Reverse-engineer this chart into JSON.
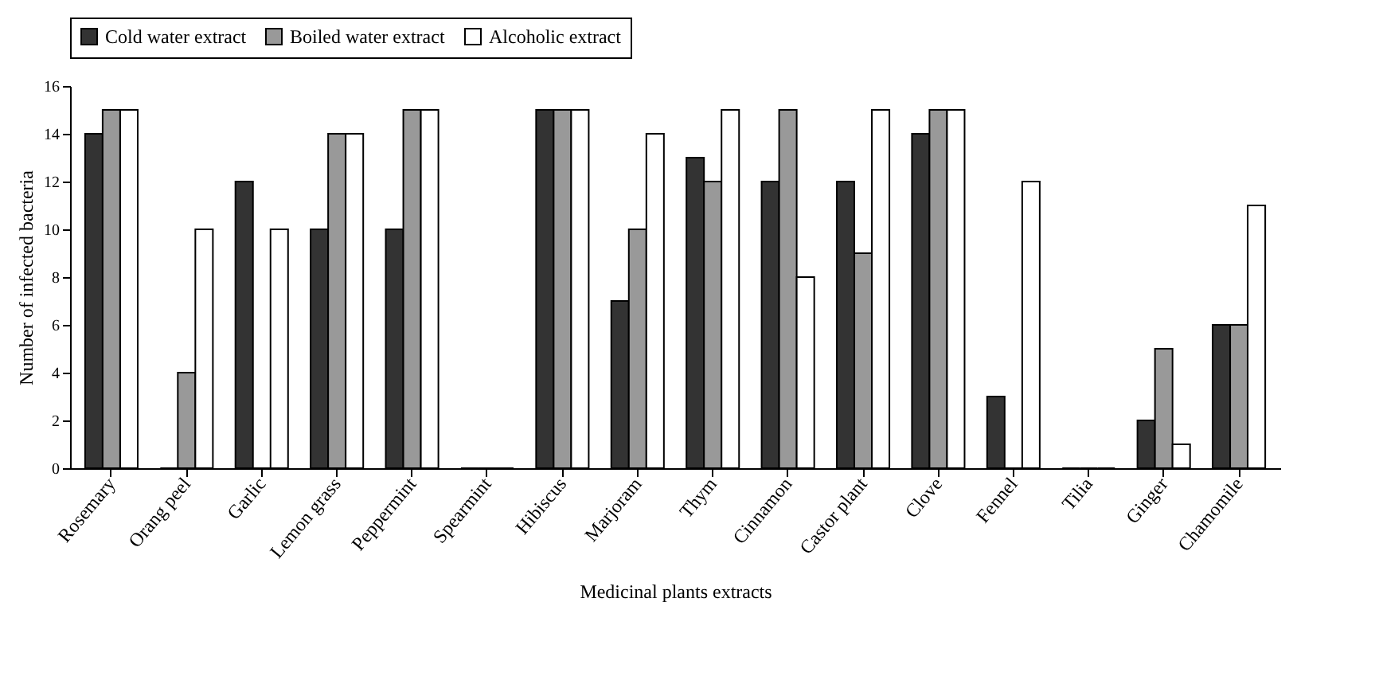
{
  "chart_data": {
    "type": "bar",
    "xlabel": "Medicinal plants extracts",
    "ylabel": "Number of infected bacteria",
    "categories": [
      "Rosemary",
      "Orang peel",
      "Garlic",
      "Lemon grass",
      "Peppermint",
      "Spearmint",
      "Hibiscus",
      "Marjoram",
      "Thym",
      "Cinnamon",
      "Castor plant",
      "Clove",
      "Fennel",
      "Tilia",
      "Ginger",
      "Chamomile"
    ],
    "series": [
      {
        "name": "Cold water extract",
        "color": "#333333",
        "values": [
          14,
          0,
          12,
          10,
          10,
          0,
          15,
          7,
          13,
          12,
          12,
          14,
          3,
          0,
          2,
          6
        ]
      },
      {
        "name": "Boiled water extract",
        "color": "#999999",
        "values": [
          15,
          4,
          0,
          14,
          15,
          0,
          15,
          10,
          12,
          15,
          9,
          15,
          0,
          0,
          5,
          6
        ]
      },
      {
        "name": "Alcoholic extract",
        "color": "#ffffff",
        "values": [
          15,
          10,
          10,
          14,
          15,
          0,
          15,
          14,
          15,
          8,
          15,
          15,
          12,
          0,
          1,
          11
        ]
      }
    ],
    "ylim": [
      0,
      16
    ],
    "yticks": [
      0,
      2,
      4,
      6,
      8,
      10,
      12,
      14,
      16
    ],
    "grid": false,
    "legend": "top"
  }
}
